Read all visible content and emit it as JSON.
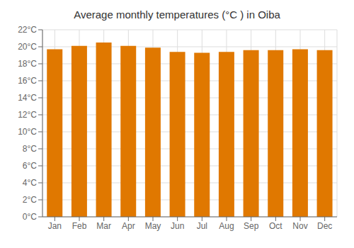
{
  "chart_data": {
    "type": "bar",
    "title": "Average monthly temperatures (°C ) in Oiba",
    "categories": [
      "Jan",
      "Feb",
      "Mar",
      "Apr",
      "May",
      "Jun",
      "Jul",
      "Aug",
      "Sep",
      "Oct",
      "Nov",
      "Dec"
    ],
    "values": [
      19.7,
      20.1,
      20.5,
      20.1,
      19.9,
      19.4,
      19.3,
      19.4,
      19.6,
      19.6,
      19.7,
      19.6
    ],
    "color": "#E07800",
    "ylim": [
      0,
      22
    ],
    "yticks": [
      {
        "value": 0,
        "label": "0°C"
      },
      {
        "value": 2,
        "label": "2°C"
      },
      {
        "value": 4,
        "label": "4°C"
      },
      {
        "value": 6,
        "label": "6°C"
      },
      {
        "value": 8,
        "label": "8°C"
      },
      {
        "value": 10,
        "label": "10°C"
      },
      {
        "value": 12,
        "label": "12°C"
      },
      {
        "value": 14,
        "label": "14°C"
      },
      {
        "value": 16,
        "label": "16°C"
      },
      {
        "value": 18,
        "label": "18°C"
      },
      {
        "value": 20,
        "label": "20°C"
      },
      {
        "value": 22,
        "label": "22°C"
      }
    ],
    "grid": true
  }
}
